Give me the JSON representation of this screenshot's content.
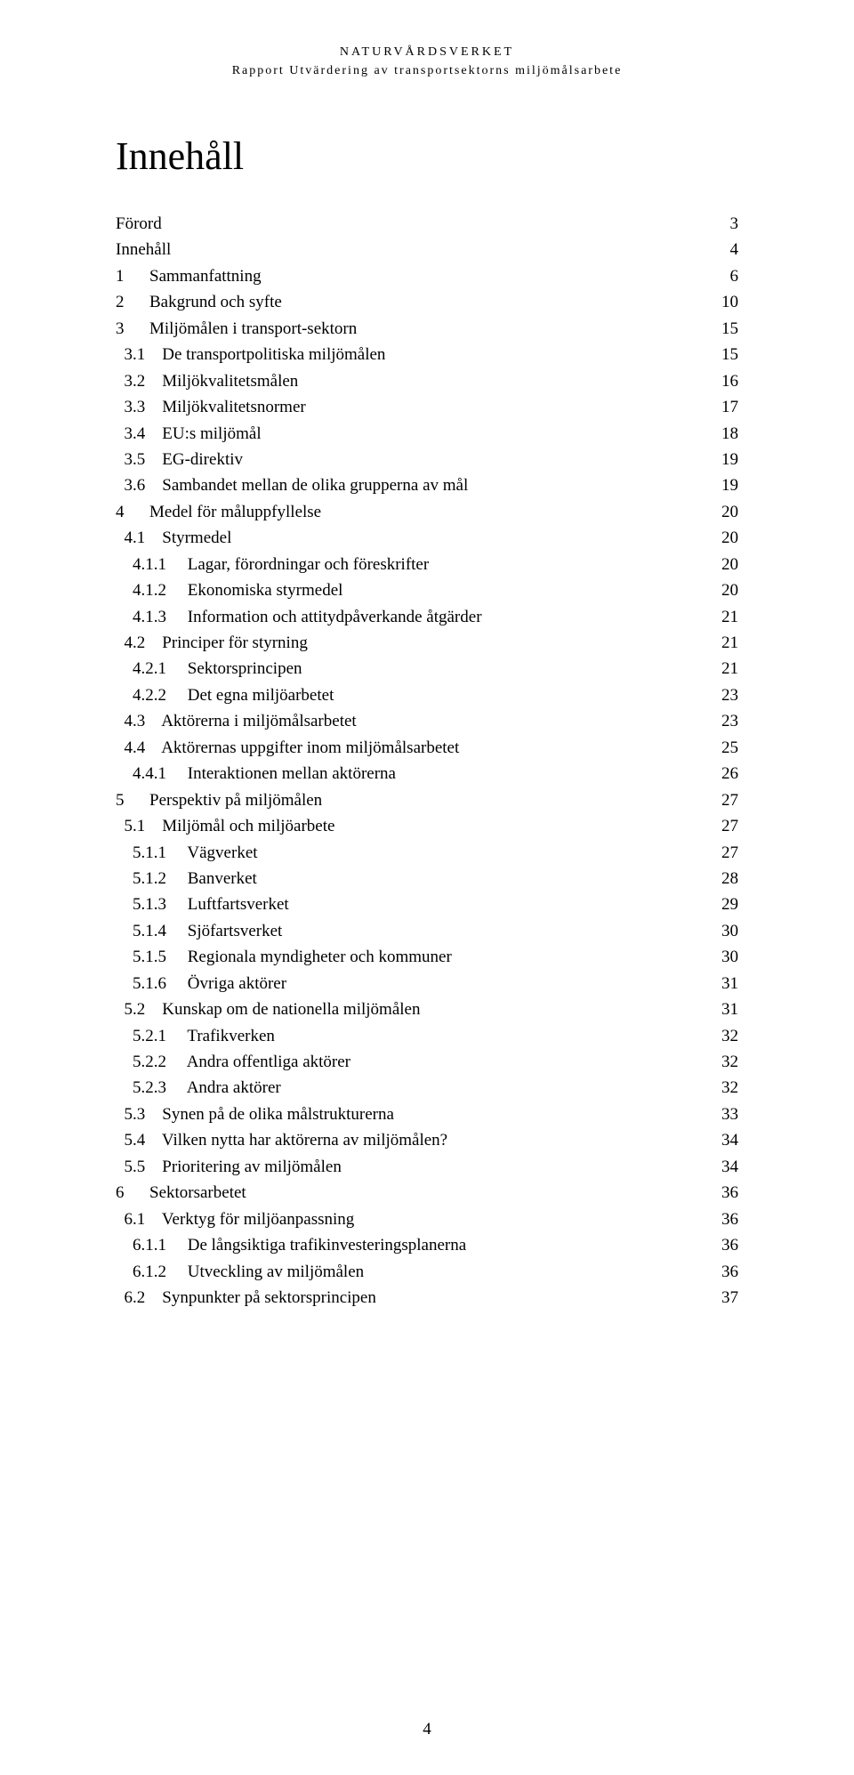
{
  "header": {
    "line1": "NATURVÅRDSVERKET",
    "line2": "Rapport Utvärdering av transportsektorns miljömålsarbete"
  },
  "title": "Innehåll",
  "toc": [
    {
      "label": "Förord",
      "page": "3",
      "level": 0
    },
    {
      "label": "Innehåll",
      "page": "4",
      "level": 0
    },
    {
      "label": "1      Sammanfattning",
      "page": "6",
      "level": 0
    },
    {
      "label": "2      Bakgrund och syfte",
      "page": "10",
      "level": 0
    },
    {
      "label": "3      Miljömålen i transport-sektorn",
      "page": "15",
      "level": 0
    },
    {
      "label": "  3.1    De transportpolitiska miljömålen",
      "page": "15",
      "level": 1
    },
    {
      "label": "  3.2    Miljökvalitetsmålen",
      "page": "16",
      "level": 1
    },
    {
      "label": "  3.3    Miljökvalitetsnormer",
      "page": "17",
      "level": 1
    },
    {
      "label": "  3.4    EU:s miljömål",
      "page": "18",
      "level": 1
    },
    {
      "label": "  3.5    EG-direktiv",
      "page": "19",
      "level": 1
    },
    {
      "label": "  3.6    Sambandet mellan de olika grupperna av mål",
      "page": "19",
      "level": 1
    },
    {
      "label": "4      Medel för måluppfyllelse",
      "page": "20",
      "level": 0
    },
    {
      "label": "  4.1    Styrmedel",
      "page": "20",
      "level": 1
    },
    {
      "label": "    4.1.1     Lagar, förordningar och föreskrifter",
      "page": "20",
      "level": 2
    },
    {
      "label": "    4.1.2     Ekonomiska styrmedel",
      "page": "20",
      "level": 2
    },
    {
      "label": "    4.1.3     Information och attitydpåverkande åtgärder",
      "page": "21",
      "level": 2
    },
    {
      "label": "  4.2    Principer för styrning",
      "page": "21",
      "level": 1
    },
    {
      "label": "    4.2.1     Sektorsprincipen",
      "page": "21",
      "level": 2
    },
    {
      "label": "    4.2.2     Det egna miljöarbetet",
      "page": "23",
      "level": 2
    },
    {
      "label": "  4.3    Aktörerna i miljömålsarbetet",
      "page": "23",
      "level": 1
    },
    {
      "label": "  4.4    Aktörernas uppgifter inom miljömålsarbetet",
      "page": "25",
      "level": 1
    },
    {
      "label": "    4.4.1     Interaktionen mellan aktörerna",
      "page": "26",
      "level": 2
    },
    {
      "label": "5      Perspektiv på miljömålen",
      "page": "27",
      "level": 0
    },
    {
      "label": "  5.1    Miljömål och miljöarbete",
      "page": "27",
      "level": 1
    },
    {
      "label": "    5.1.1     Vägverket",
      "page": "27",
      "level": 2
    },
    {
      "label": "    5.1.2     Banverket",
      "page": "28",
      "level": 2
    },
    {
      "label": "    5.1.3     Luftfartsverket",
      "page": "29",
      "level": 2
    },
    {
      "label": "    5.1.4     Sjöfartsverket",
      "page": "30",
      "level": 2
    },
    {
      "label": "    5.1.5     Regionala myndigheter och kommuner",
      "page": "30",
      "level": 2
    },
    {
      "label": "    5.1.6     Övriga aktörer",
      "page": "31",
      "level": 2
    },
    {
      "label": "  5.2    Kunskap om de nationella miljömålen",
      "page": "31",
      "level": 1
    },
    {
      "label": "    5.2.1     Trafikverken",
      "page": "32",
      "level": 2
    },
    {
      "label": "    5.2.2     Andra offentliga aktörer",
      "page": "32",
      "level": 2
    },
    {
      "label": "    5.2.3     Andra aktörer",
      "page": "32",
      "level": 2
    },
    {
      "label": "  5.3    Synen på de olika målstrukturerna",
      "page": "33",
      "level": 1
    },
    {
      "label": "  5.4    Vilken nytta har aktörerna av miljömålen?",
      "page": "34",
      "level": 1
    },
    {
      "label": "  5.5    Prioritering av miljömålen",
      "page": "34",
      "level": 1
    },
    {
      "label": "6      Sektorsarbetet",
      "page": "36",
      "level": 0
    },
    {
      "label": "  6.1    Verktyg för miljöanpassning",
      "page": "36",
      "level": 1
    },
    {
      "label": "    6.1.1     De långsiktiga trafikinvesteringsplanerna",
      "page": "36",
      "level": 2
    },
    {
      "label": "    6.1.2     Utveckling av miljömålen",
      "page": "36",
      "level": 2
    },
    {
      "label": "  6.2    Synpunkter på sektorsprincipen",
      "page": "37",
      "level": 1
    }
  ],
  "footer": {
    "page_number": "4"
  }
}
